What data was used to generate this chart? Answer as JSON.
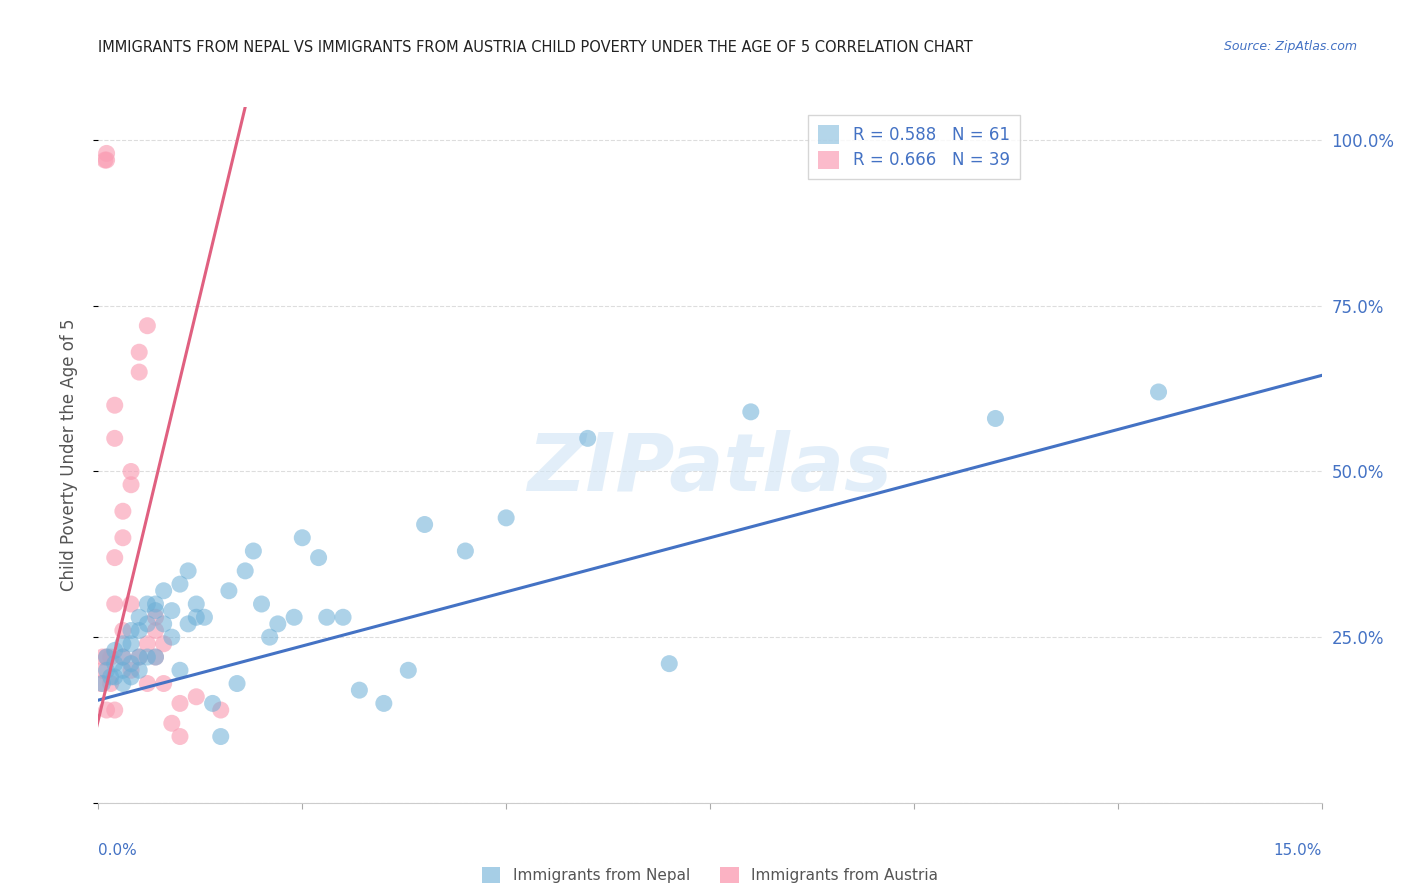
{
  "title": "IMMIGRANTS FROM NEPAL VS IMMIGRANTS FROM AUSTRIA CHILD POVERTY UNDER THE AGE OF 5 CORRELATION CHART",
  "source": "Source: ZipAtlas.com",
  "ylabel": "Child Poverty Under the Age of 5",
  "xlabel_label_nepal": "Immigrants from Nepal",
  "xlabel_label_austria": "Immigrants from Austria",
  "xmin": 0.0,
  "xmax": 0.15,
  "ymin": 0.0,
  "ymax": 1.05,
  "yticks": [
    0.0,
    0.25,
    0.5,
    0.75,
    1.0
  ],
  "ytick_labels_right": [
    "",
    "25.0%",
    "50.0%",
    "75.0%",
    "100.0%"
  ],
  "xtick_left_label": "0.0%",
  "xtick_right_label": "15.0%",
  "nepal_color": "#6baed6",
  "austria_color": "#fa9fb5",
  "nepal_line_color": "#4472c4",
  "austria_line_color": "#e06080",
  "nepal_R": 0.588,
  "nepal_N": 61,
  "austria_R": 0.666,
  "austria_N": 39,
  "nepal_x": [
    0.0005,
    0.001,
    0.001,
    0.0015,
    0.002,
    0.002,
    0.002,
    0.003,
    0.003,
    0.003,
    0.003,
    0.004,
    0.004,
    0.004,
    0.004,
    0.005,
    0.005,
    0.005,
    0.005,
    0.006,
    0.006,
    0.006,
    0.007,
    0.007,
    0.007,
    0.008,
    0.008,
    0.009,
    0.009,
    0.01,
    0.01,
    0.011,
    0.011,
    0.012,
    0.012,
    0.013,
    0.014,
    0.015,
    0.016,
    0.017,
    0.018,
    0.019,
    0.02,
    0.021,
    0.022,
    0.024,
    0.025,
    0.027,
    0.028,
    0.03,
    0.032,
    0.035,
    0.038,
    0.04,
    0.045,
    0.05,
    0.06,
    0.07,
    0.08,
    0.11,
    0.13
  ],
  "nepal_y": [
    0.18,
    0.2,
    0.22,
    0.19,
    0.21,
    0.19,
    0.23,
    0.2,
    0.22,
    0.18,
    0.24,
    0.19,
    0.24,
    0.21,
    0.26,
    0.28,
    0.2,
    0.26,
    0.22,
    0.3,
    0.22,
    0.27,
    0.3,
    0.22,
    0.29,
    0.32,
    0.27,
    0.25,
    0.29,
    0.33,
    0.2,
    0.27,
    0.35,
    0.3,
    0.28,
    0.28,
    0.15,
    0.1,
    0.32,
    0.18,
    0.35,
    0.38,
    0.3,
    0.25,
    0.27,
    0.28,
    0.4,
    0.37,
    0.28,
    0.28,
    0.17,
    0.15,
    0.2,
    0.42,
    0.38,
    0.43,
    0.55,
    0.21,
    0.59,
    0.58,
    0.62
  ],
  "austria_x": [
    0.0003,
    0.0005,
    0.0005,
    0.0008,
    0.001,
    0.001,
    0.001,
    0.001,
    0.0015,
    0.0015,
    0.002,
    0.002,
    0.002,
    0.002,
    0.002,
    0.003,
    0.003,
    0.003,
    0.003,
    0.004,
    0.004,
    0.004,
    0.004,
    0.005,
    0.005,
    0.005,
    0.006,
    0.006,
    0.006,
    0.007,
    0.007,
    0.007,
    0.008,
    0.008,
    0.009,
    0.01,
    0.01,
    0.012,
    0.015
  ],
  "austria_y": [
    0.18,
    0.2,
    0.22,
    0.97,
    0.97,
    0.98,
    0.14,
    0.22,
    0.18,
    0.22,
    0.3,
    0.37,
    0.55,
    0.6,
    0.14,
    0.4,
    0.44,
    0.22,
    0.26,
    0.5,
    0.48,
    0.2,
    0.3,
    0.65,
    0.68,
    0.22,
    0.72,
    0.24,
    0.18,
    0.22,
    0.26,
    0.28,
    0.24,
    0.18,
    0.12,
    0.15,
    0.1,
    0.16,
    0.14
  ],
  "nepal_line_x": [
    0.0,
    0.15
  ],
  "nepal_line_y": [
    0.155,
    0.645
  ],
  "austria_line_x": [
    -0.0005,
    0.018
  ],
  "austria_line_y": [
    0.1,
    1.05
  ],
  "watermark": "ZIPatlas",
  "bg_color": "#ffffff",
  "grid_color": "#dddddd",
  "title_color": "#222222",
  "axis_label_color": "#555555",
  "tick_color": "#4472c4",
  "legend_color": "#4472c4"
}
